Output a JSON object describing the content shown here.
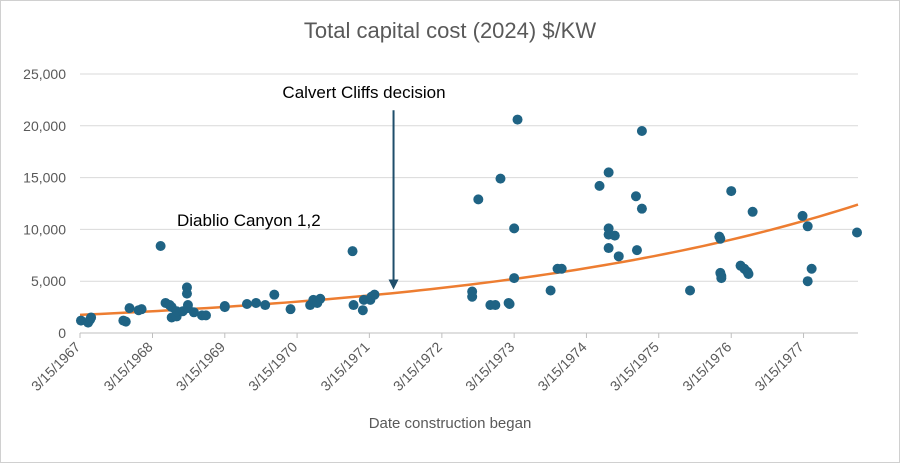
{
  "chart_data": {
    "type": "scatter",
    "title": "Total capital cost (2024) $/KW",
    "xlabel": "Date construction began",
    "ylabel": "",
    "ylim": [
      0,
      25000
    ],
    "y_ticks": [
      0,
      5000,
      10000,
      15000,
      20000,
      25000
    ],
    "y_tick_labels": [
      "0",
      "5,000",
      "10,000",
      "15,000",
      "20,000",
      "25,000"
    ],
    "x_range": [
      "1967-03-15",
      "1977-12-15"
    ],
    "x_tick_labels": [
      "3/15/1967",
      "3/15/1968",
      "3/15/1969",
      "3/15/1970",
      "3/15/1971",
      "3/15/1972",
      "3/15/1973",
      "3/15/1974",
      "3/15/1975",
      "3/15/1976",
      "3/15/1977"
    ],
    "x_tick_dates": [
      "1967-03-15",
      "1968-03-15",
      "1969-03-15",
      "1970-03-15",
      "1971-03-15",
      "1972-03-15",
      "1973-03-15",
      "1974-03-15",
      "1975-03-15",
      "1976-03-15",
      "1977-03-15"
    ],
    "grid": "horizontal",
    "colors": {
      "points": "#1f6384",
      "trendline": "#ed7d31",
      "arrow": "#1f4e6b"
    },
    "series": [
      {
        "points": [
          [
            "1967-03-20",
            1200
          ],
          [
            "1967-04-25",
            1000
          ],
          [
            "1967-05-05",
            1300
          ],
          [
            "1967-05-10",
            1500
          ],
          [
            "1967-10-20",
            1200
          ],
          [
            "1967-11-01",
            1100
          ],
          [
            "1967-11-20",
            2400
          ],
          [
            "1968-01-05",
            2200
          ],
          [
            "1968-01-20",
            2300
          ],
          [
            "1968-04-25",
            8400
          ],
          [
            "1968-05-20",
            2900
          ],
          [
            "1968-06-10",
            2700
          ],
          [
            "1968-06-20",
            2500
          ],
          [
            "1968-06-20",
            1500
          ],
          [
            "1968-07-15",
            1600
          ],
          [
            "1968-07-15",
            2100
          ],
          [
            "1968-08-15",
            2100
          ],
          [
            "1968-09-05",
            4400
          ],
          [
            "1968-09-05",
            3800
          ],
          [
            "1968-09-10",
            2700
          ],
          [
            "1968-09-10",
            2400
          ],
          [
            "1968-10-10",
            2000
          ],
          [
            "1968-11-20",
            1700
          ],
          [
            "1968-12-10",
            1700
          ],
          [
            "1969-03-15",
            2600
          ],
          [
            "1969-03-15",
            2500
          ],
          [
            "1969-07-05",
            2800
          ],
          [
            "1969-08-20",
            2900
          ],
          [
            "1969-10-05",
            2700
          ],
          [
            "1969-11-20",
            3700
          ],
          [
            "1970-02-10",
            2300
          ],
          [
            "1970-05-20",
            2700
          ],
          [
            "1970-06-05",
            3200
          ],
          [
            "1970-06-25",
            2900
          ],
          [
            "1970-07-10",
            3300
          ],
          [
            "1970-12-20",
            7900
          ],
          [
            "1970-12-25",
            2700
          ],
          [
            "1971-02-10",
            2200
          ],
          [
            "1971-02-15",
            3200
          ],
          [
            "1971-03-20",
            3200
          ],
          [
            "1971-03-25",
            3500
          ],
          [
            "1971-04-10",
            3700
          ],
          [
            "1972-08-15",
            4000
          ],
          [
            "1972-08-15",
            3500
          ],
          [
            "1972-09-15",
            12900
          ],
          [
            "1972-11-15",
            2700
          ],
          [
            "1972-12-10",
            2700
          ],
          [
            "1973-01-05",
            14900
          ],
          [
            "1973-02-15",
            2900
          ],
          [
            "1973-02-20",
            2800
          ],
          [
            "1973-03-15",
            10100
          ],
          [
            "1973-03-15",
            5300
          ],
          [
            "1973-04-01",
            20600
          ],
          [
            "1973-09-15",
            4100
          ],
          [
            "1973-10-20",
            6200
          ],
          [
            "1973-11-10",
            6200
          ],
          [
            "1974-05-20",
            14200
          ],
          [
            "1974-07-05",
            15500
          ],
          [
            "1974-07-05",
            10100
          ],
          [
            "1974-07-05",
            9500
          ],
          [
            "1974-07-05",
            8200
          ],
          [
            "1974-08-05",
            9400
          ],
          [
            "1974-08-25",
            7400
          ],
          [
            "1974-11-20",
            13200
          ],
          [
            "1974-11-25",
            8000
          ],
          [
            "1974-12-20",
            19500
          ],
          [
            "1974-12-20",
            12000
          ],
          [
            "1975-08-20",
            4100
          ],
          [
            "1976-01-15",
            9300
          ],
          [
            "1976-01-20",
            9100
          ],
          [
            "1976-01-20",
            5800
          ],
          [
            "1976-01-25",
            5500
          ],
          [
            "1976-01-25",
            5300
          ],
          [
            "1976-03-15",
            13700
          ],
          [
            "1976-05-01",
            6500
          ],
          [
            "1976-05-20",
            6200
          ],
          [
            "1976-06-05",
            5900
          ],
          [
            "1976-06-10",
            5700
          ],
          [
            "1976-07-01",
            11700
          ],
          [
            "1977-03-10",
            11300
          ],
          [
            "1977-04-05",
            10300
          ],
          [
            "1977-04-05",
            5000
          ],
          [
            "1977-04-25",
            6200
          ],
          [
            "1977-12-10",
            9700
          ]
        ]
      }
    ],
    "trendline": {
      "type": "exponential",
      "points": [
        [
          "1967-03-15",
          1750
        ],
        [
          "1977-12-15",
          12400
        ]
      ]
    },
    "annotations": [
      {
        "text": "Calvert Cliffs decision",
        "arrow_date": "1971-07-15",
        "arrow_from_value": 21500,
        "arrow_to_value": 4200
      },
      {
        "text": "Diablio Canyon 1,2"
      }
    ]
  }
}
